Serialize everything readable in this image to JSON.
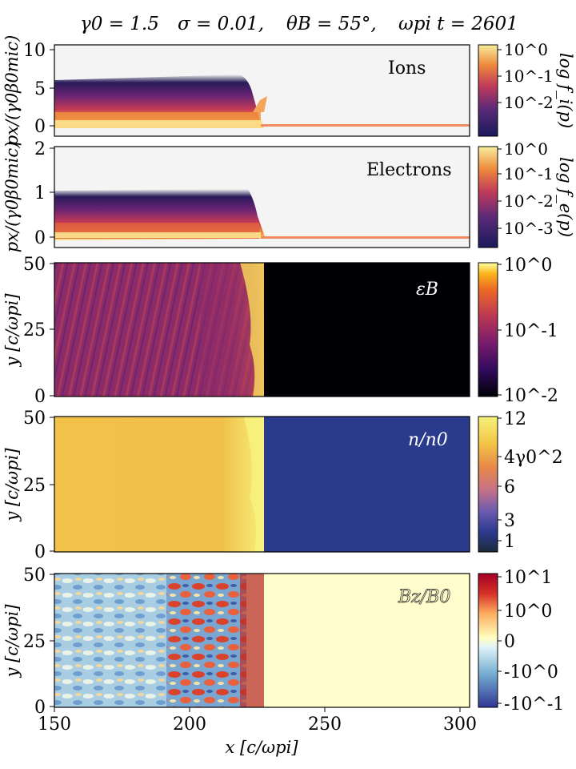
{
  "header": {
    "gamma": "γ0 = 1.5",
    "sigma": "σ = 0.01,",
    "theta": "θB = 55°,",
    "time": "ωpi t = 2601"
  },
  "chart_data": {
    "type": "heatmap",
    "title": "γ0 = 1.5   σ = 0.01,   θB = 55°,   ωpi t = 2601",
    "xlabel": "x [c/ωpi]",
    "xlim": [
      150,
      305
    ],
    "xticks": [
      "150",
      "200",
      "250",
      "300"
    ],
    "shock_position": 228,
    "panels": [
      {
        "name": "ions",
        "label": "Ions",
        "ylabel": "px/(γ0β0mic)",
        "ylim": [
          -0.8,
          10.5
        ],
        "yticks": [
          "0",
          "5",
          "10"
        ],
        "colorbar_label": "log f_i(p)",
        "colorbar_ticks": [
          "10^0",
          "10^-1",
          "10^-2"
        ],
        "colormap": "inferno-like"
      },
      {
        "name": "electrons",
        "label": "Electrons",
        "ylabel": "px/(γ0β0mic)",
        "ylim": [
          -0.15,
          2.0
        ],
        "yticks": [
          "0",
          "1",
          "2"
        ],
        "colorbar_label": "log f_e(p)",
        "colorbar_ticks": [
          "10^0",
          "10^-1",
          "10^-2",
          "10^-3"
        ],
        "colormap": "inferno-like"
      },
      {
        "name": "epsilon_b",
        "label": "εB",
        "ylabel": "y [c/ωpi]",
        "ylim": [
          0,
          50
        ],
        "yticks": [
          "0",
          "25",
          "50"
        ],
        "colorbar_ticks": [
          "10^0",
          "10^-1",
          "10^-2"
        ],
        "colormap": "inferno",
        "upstream_value": "10^-2"
      },
      {
        "name": "density",
        "label": "n/n0",
        "ylabel": "y [c/ωpi]",
        "ylim": [
          0,
          50
        ],
        "yticks": [
          "0",
          "25",
          "50"
        ],
        "colorbar_ticks": [
          "12",
          "4γ0^2",
          "6",
          "3",
          "1"
        ],
        "colormap": "cmr-voltage-like",
        "upstream_value": 1,
        "downstream_value": 9
      },
      {
        "name": "bz",
        "label": "Bz/B0",
        "ylabel": "y [c/ωpi]",
        "ylim": [
          0,
          50
        ],
        "yticks": [
          "0",
          "25",
          "50"
        ],
        "colorbar_ticks": [
          "10^1",
          "10^0",
          "0",
          "-10^0",
          "-10^-1"
        ],
        "colormap": "RdYlBu_r",
        "upstream_value": 0
      }
    ]
  }
}
